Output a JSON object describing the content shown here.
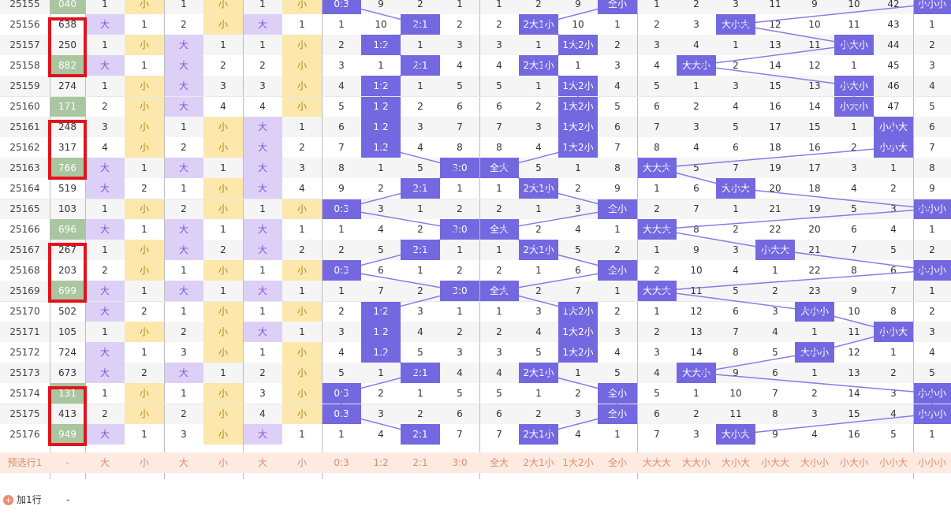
{
  "columns": [
    {
      "key": "issue"
    },
    {
      "key": "number"
    },
    {
      "key": "d0"
    },
    {
      "key": "d1"
    },
    {
      "key": "d2"
    },
    {
      "key": "d3"
    },
    {
      "key": "d4"
    },
    {
      "key": "d5"
    },
    {
      "key": "r03"
    },
    {
      "key": "r12"
    },
    {
      "key": "r21"
    },
    {
      "key": "r30"
    },
    {
      "key": "all_big"
    },
    {
      "key": "2b1s"
    },
    {
      "key": "1b2s"
    },
    {
      "key": "all_small"
    },
    {
      "key": "bbb"
    },
    {
      "key": "bbs"
    },
    {
      "key": "bsb"
    },
    {
      "key": "sbb"
    },
    {
      "key": "bss"
    },
    {
      "key": "sbs"
    },
    {
      "key": "ssb"
    },
    {
      "key": "sss"
    }
  ],
  "rows": [
    {
      "issue": "25155",
      "number": "040",
      "cells": [
        "1",
        "小",
        "1",
        "小",
        "1",
        "小",
        "0:3",
        "9",
        "2",
        "1",
        "1",
        "2",
        "9",
        "全小",
        "1",
        "2",
        "3",
        "11",
        "9",
        "10",
        "42",
        "小小小"
      ]
    },
    {
      "issue": "25156",
      "number": "638",
      "cells": [
        "大",
        "1",
        "2",
        "小",
        "大",
        "1",
        "1",
        "10",
        "2:1",
        "2",
        "2",
        "2大1小",
        "10",
        "1",
        "2",
        "3",
        "大小大",
        "12",
        "10",
        "11",
        "43",
        "1"
      ]
    },
    {
      "issue": "25157",
      "number": "250",
      "cells": [
        "1",
        "小",
        "大",
        "1",
        "1",
        "小",
        "2",
        "1:2",
        "1",
        "3",
        "3",
        "1",
        "1大2小",
        "2",
        "3",
        "4",
        "1",
        "13",
        "11",
        "小大小",
        "44",
        "2"
      ]
    },
    {
      "issue": "25158",
      "number": "882",
      "cells": [
        "大",
        "1",
        "大",
        "2",
        "2",
        "小",
        "3",
        "1",
        "2:1",
        "4",
        "4",
        "2大1小",
        "1",
        "3",
        "4",
        "大大小",
        "2",
        "14",
        "12",
        "1",
        "45",
        "3"
      ]
    },
    {
      "issue": "25159",
      "number": "274",
      "cells": [
        "1",
        "小",
        "大",
        "3",
        "3",
        "小",
        "4",
        "1:2",
        "1",
        "5",
        "5",
        "1",
        "1大2小",
        "4",
        "5",
        "1",
        "3",
        "15",
        "13",
        "小大小",
        "46",
        "4"
      ]
    },
    {
      "issue": "25160",
      "number": "171",
      "cells": [
        "2",
        "小",
        "大",
        "4",
        "4",
        "小",
        "5",
        "1:2",
        "2",
        "6",
        "6",
        "2",
        "1大2小",
        "5",
        "6",
        "2",
        "4",
        "16",
        "14",
        "小大小",
        "47",
        "5"
      ]
    },
    {
      "issue": "25161",
      "number": "248",
      "cells": [
        "3",
        "小",
        "1",
        "小",
        "大",
        "1",
        "6",
        "1:2",
        "3",
        "7",
        "7",
        "3",
        "1大2小",
        "6",
        "7",
        "3",
        "5",
        "17",
        "15",
        "1",
        "小小大",
        "6"
      ]
    },
    {
      "issue": "25162",
      "number": "317",
      "cells": [
        "4",
        "小",
        "2",
        "小",
        "大",
        "2",
        "7",
        "1:2",
        "4",
        "8",
        "8",
        "4",
        "1大2小",
        "7",
        "8",
        "4",
        "6",
        "18",
        "16",
        "2",
        "小小大",
        "7"
      ]
    },
    {
      "issue": "25163",
      "number": "766",
      "cells": [
        "大",
        "1",
        "大",
        "1",
        "大",
        "3",
        "8",
        "1",
        "5",
        "3:0",
        "全大",
        "5",
        "1",
        "8",
        "大大大",
        "5",
        "7",
        "19",
        "17",
        "3",
        "1",
        "8"
      ]
    },
    {
      "issue": "25164",
      "number": "519",
      "cells": [
        "大",
        "2",
        "1",
        "小",
        "大",
        "4",
        "9",
        "2",
        "2:1",
        "1",
        "1",
        "2大1小",
        "2",
        "9",
        "1",
        "6",
        "大小大",
        "20",
        "18",
        "4",
        "2",
        "9"
      ]
    },
    {
      "issue": "25165",
      "number": "103",
      "cells": [
        "1",
        "小",
        "2",
        "小",
        "1",
        "小",
        "0:3",
        "3",
        "1",
        "2",
        "2",
        "1",
        "3",
        "全小",
        "2",
        "7",
        "1",
        "21",
        "19",
        "5",
        "3",
        "小小小"
      ]
    },
    {
      "issue": "25166",
      "number": "696",
      "cells": [
        "大",
        "1",
        "大",
        "1",
        "大",
        "1",
        "1",
        "4",
        "2",
        "3:0",
        "全大",
        "2",
        "4",
        "1",
        "大大大",
        "8",
        "2",
        "22",
        "20",
        "6",
        "4",
        "1"
      ]
    },
    {
      "issue": "25167",
      "number": "267",
      "cells": [
        "1",
        "小",
        "大",
        "2",
        "大",
        "2",
        "2",
        "5",
        "2:1",
        "1",
        "1",
        "2大1小",
        "5",
        "2",
        "1",
        "9",
        "3",
        "小大大",
        "21",
        "7",
        "5",
        "2"
      ]
    },
    {
      "issue": "25168",
      "number": "203",
      "cells": [
        "2",
        "小",
        "1",
        "小",
        "1",
        "小",
        "0:3",
        "6",
        "1",
        "2",
        "2",
        "1",
        "6",
        "全小",
        "2",
        "10",
        "4",
        "1",
        "22",
        "8",
        "6",
        "小小小"
      ]
    },
    {
      "issue": "25169",
      "number": "699",
      "cells": [
        "大",
        "1",
        "大",
        "1",
        "大",
        "1",
        "1",
        "7",
        "2",
        "3:0",
        "全大",
        "2",
        "7",
        "1",
        "大大大",
        "11",
        "5",
        "2",
        "23",
        "9",
        "7",
        "1"
      ]
    },
    {
      "issue": "25170",
      "number": "502",
      "cells": [
        "大",
        "2",
        "1",
        "小",
        "1",
        "小",
        "2",
        "1:2",
        "3",
        "1",
        "1",
        "3",
        "1大2小",
        "2",
        "1",
        "12",
        "6",
        "3",
        "大小小",
        "10",
        "8",
        "2"
      ]
    },
    {
      "issue": "25171",
      "number": "105",
      "cells": [
        "1",
        "小",
        "2",
        "小",
        "大",
        "1",
        "3",
        "1:2",
        "4",
        "2",
        "2",
        "4",
        "1大2小",
        "3",
        "2",
        "13",
        "7",
        "4",
        "1",
        "11",
        "小小大",
        "3"
      ]
    },
    {
      "issue": "25172",
      "number": "724",
      "cells": [
        "大",
        "1",
        "3",
        "小",
        "1",
        "小",
        "4",
        "1:2",
        "5",
        "3",
        "3",
        "5",
        "1大2小",
        "4",
        "3",
        "14",
        "8",
        "5",
        "大小小",
        "12",
        "1",
        "4"
      ]
    },
    {
      "issue": "25173",
      "number": "673",
      "cells": [
        "大",
        "2",
        "大",
        "1",
        "2",
        "小",
        "5",
        "1",
        "2:1",
        "4",
        "4",
        "2大1小",
        "1",
        "5",
        "4",
        "大大小",
        "9",
        "6",
        "1",
        "13",
        "2",
        "5"
      ]
    },
    {
      "issue": "25174",
      "number": "131",
      "cells": [
        "1",
        "小",
        "1",
        "小",
        "3",
        "小",
        "0:3",
        "2",
        "1",
        "5",
        "5",
        "1",
        "2",
        "全小",
        "5",
        "1",
        "10",
        "7",
        "2",
        "14",
        "3",
        "小小小"
      ]
    },
    {
      "issue": "25175",
      "number": "413",
      "cells": [
        "2",
        "小",
        "2",
        "小",
        "4",
        "小",
        "0:3",
        "3",
        "2",
        "6",
        "6",
        "2",
        "3",
        "全小",
        "6",
        "2",
        "11",
        "8",
        "3",
        "15",
        "4",
        "小小小"
      ]
    },
    {
      "issue": "25176",
      "number": "949",
      "cells": [
        "大",
        "1",
        "3",
        "小",
        "大",
        "1",
        "1",
        "4",
        "2:1",
        "7",
        "7",
        "2大1小",
        "4",
        "1",
        "7",
        "3",
        "大小大",
        "9",
        "4",
        "16",
        "5",
        "1"
      ]
    }
  ],
  "highlight_numbers": [
    "040",
    "882",
    "171",
    "766",
    "696",
    "699",
    "131",
    "949"
  ],
  "prediction_row": {
    "label": "预选行1",
    "number": "-",
    "cells": [
      "大",
      "小",
      "大",
      "小",
      "大",
      "小",
      "0:3",
      "1:2",
      "2:1",
      "3:0",
      "全大",
      "2大1小",
      "1大2小",
      "全小",
      "大大大",
      "大大小",
      "大小大",
      "小大大",
      "大小小",
      "小大小",
      "小小大",
      "小小小"
    ]
  },
  "add_row": {
    "label": "加1行",
    "value": "-"
  },
  "colors": {
    "big": "#ddd0f7",
    "small": "#fce7ac",
    "hit": "#7468e0",
    "number_hit": "#a9c6a0",
    "frame": "#e0141c",
    "trend_line": "#7468e0"
  }
}
